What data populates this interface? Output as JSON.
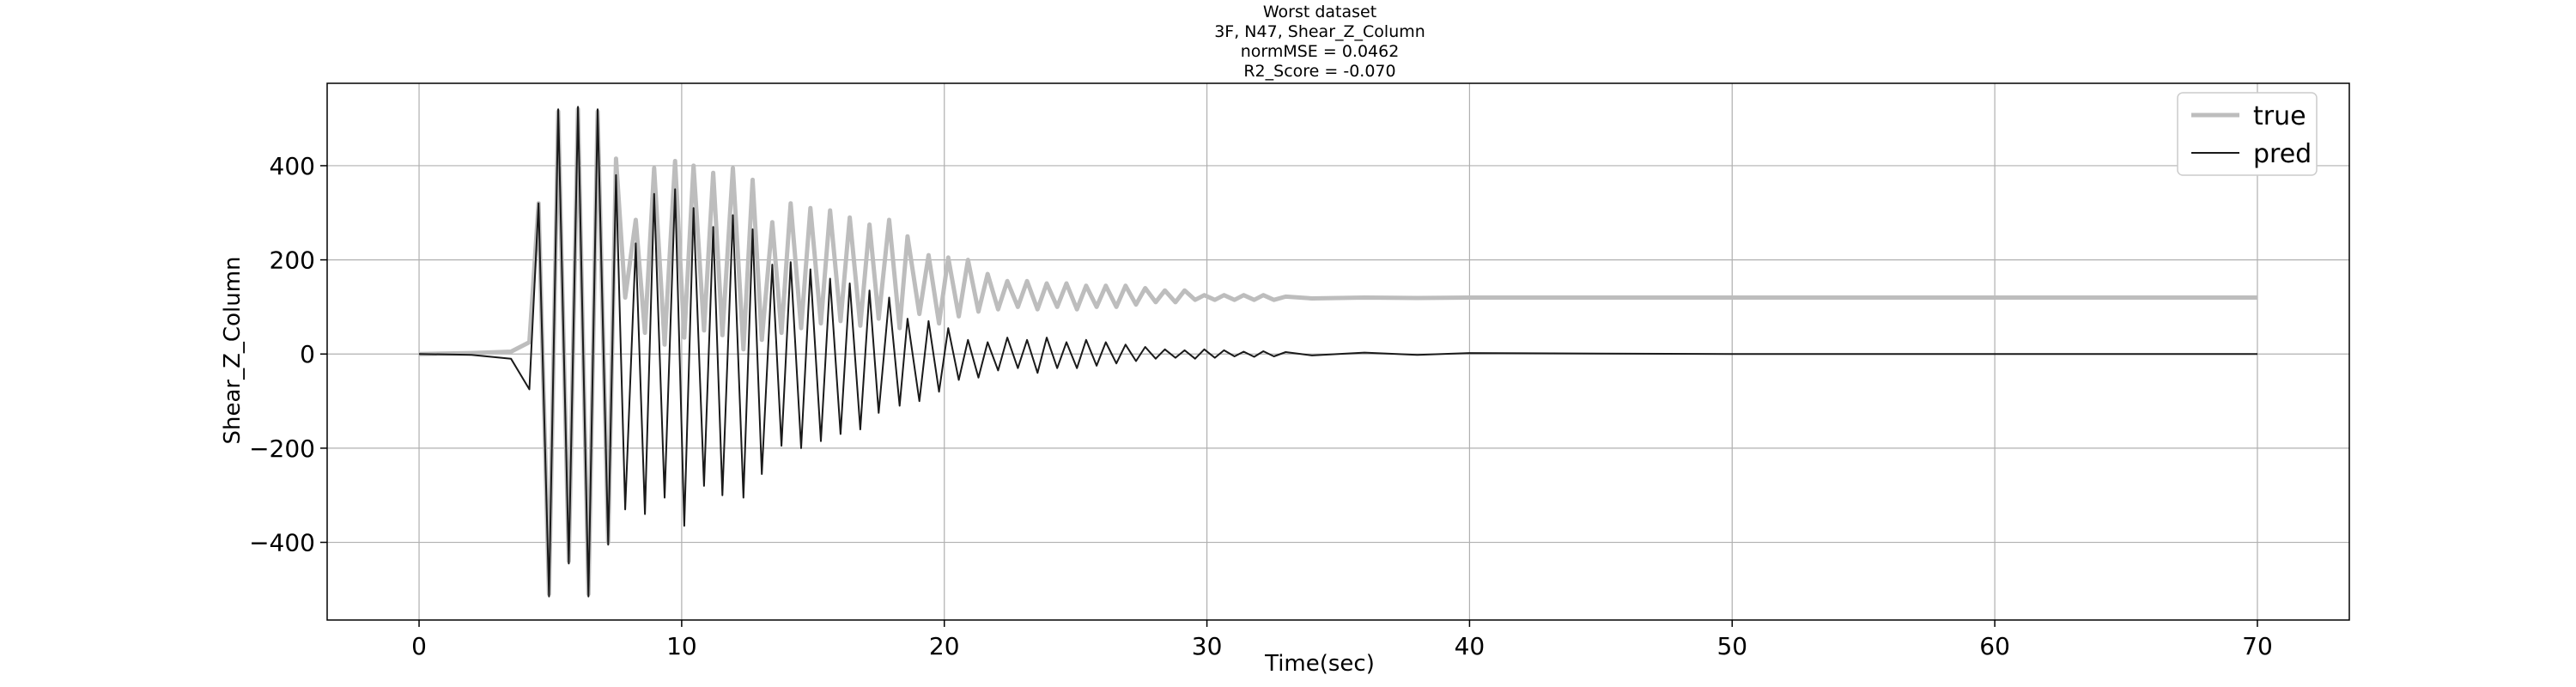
{
  "chart_data": {
    "type": "line",
    "title_lines": [
      "Worst dataset",
      "3F, N47, Shear_Z_Column",
      "normMSE = 0.0462",
      "R2_Score = -0.070"
    ],
    "xlabel": "Time(sec)",
    "ylabel": "Shear_Z_Column",
    "xlim": [
      -3.5,
      73.5
    ],
    "ylim": [
      -565,
      575
    ],
    "x_ticks": [
      0,
      10,
      20,
      30,
      40,
      50,
      60,
      70
    ],
    "x_tick_labels": [
      "0",
      "10",
      "20",
      "30",
      "40",
      "50",
      "60",
      "70"
    ],
    "y_ticks": [
      -400,
      -200,
      0,
      200,
      400
    ],
    "y_tick_labels": [
      "−400",
      "−200",
      "0",
      "200",
      "400"
    ],
    "grid": true,
    "legend": {
      "position": "upper-right",
      "entries": [
        "true",
        "pred"
      ]
    },
    "series": [
      {
        "name": "true",
        "color": "#bdbdbd",
        "x": [
          0,
          2,
          3.5,
          4.2,
          4.55,
          4.95,
          5.3,
          5.7,
          6.05,
          6.45,
          6.8,
          7.2,
          7.5,
          7.85,
          8.25,
          8.6,
          8.95,
          9.35,
          9.75,
          10.1,
          10.45,
          10.85,
          11.2,
          11.55,
          11.95,
          12.35,
          12.7,
          13.05,
          13.45,
          13.8,
          14.15,
          14.55,
          14.9,
          15.3,
          15.65,
          16.05,
          16.4,
          16.8,
          17.15,
          17.5,
          17.9,
          18.3,
          18.6,
          19.05,
          19.4,
          19.8,
          20.15,
          20.55,
          20.9,
          21.3,
          21.65,
          22.05,
          22.4,
          22.8,
          23.15,
          23.55,
          23.9,
          24.3,
          24.65,
          25.05,
          25.4,
          25.8,
          26.15,
          26.55,
          26.9,
          27.3,
          27.65,
          28.05,
          28.4,
          28.8,
          29.15,
          29.55,
          29.9,
          30.3,
          30.65,
          31.05,
          31.4,
          31.8,
          32.15,
          32.55,
          33,
          34,
          36,
          38,
          40,
          45,
          50,
          55,
          60,
          65,
          70
        ],
        "values": [
          0,
          2,
          5,
          25,
          320,
          -510,
          515,
          -440,
          520,
          -510,
          515,
          -400,
          415,
          120,
          285,
          45,
          395,
          20,
          410,
          35,
          400,
          50,
          385,
          40,
          395,
          10,
          370,
          30,
          280,
          45,
          320,
          55,
          310,
          65,
          305,
          70,
          290,
          60,
          275,
          75,
          285,
          55,
          250,
          85,
          210,
          65,
          205,
          80,
          200,
          90,
          170,
          95,
          155,
          100,
          155,
          95,
          150,
          100,
          150,
          95,
          145,
          100,
          145,
          100,
          145,
          105,
          140,
          110,
          135,
          110,
          135,
          115,
          125,
          115,
          125,
          115,
          125,
          115,
          125,
          115,
          122,
          118,
          120,
          119,
          120,
          120,
          120,
          120,
          120,
          120,
          120
        ]
      },
      {
        "name": "pred",
        "color": "#1a1a1a",
        "x": [
          0,
          2,
          3.5,
          4.2,
          4.55,
          4.95,
          5.3,
          5.7,
          6.05,
          6.45,
          6.8,
          7.2,
          7.5,
          7.85,
          8.25,
          8.6,
          8.95,
          9.35,
          9.75,
          10.1,
          10.45,
          10.85,
          11.2,
          11.55,
          11.95,
          12.35,
          12.7,
          13.05,
          13.45,
          13.8,
          14.15,
          14.55,
          14.9,
          15.3,
          15.65,
          16.05,
          16.4,
          16.8,
          17.15,
          17.5,
          17.9,
          18.3,
          18.6,
          19.05,
          19.4,
          19.8,
          20.15,
          20.55,
          20.9,
          21.3,
          21.65,
          22.05,
          22.4,
          22.8,
          23.15,
          23.55,
          23.9,
          24.3,
          24.65,
          25.05,
          25.4,
          25.8,
          26.15,
          26.55,
          26.9,
          27.3,
          27.65,
          28.05,
          28.4,
          28.8,
          29.15,
          29.55,
          29.9,
          30.3,
          30.65,
          31.05,
          31.4,
          31.8,
          32.15,
          32.55,
          33,
          34,
          36,
          38,
          40,
          45,
          50,
          55,
          60,
          65,
          70
        ],
        "values": [
          0,
          -2,
          -10,
          -75,
          320,
          -515,
          520,
          -445,
          525,
          -515,
          520,
          -405,
          380,
          -330,
          235,
          -340,
          340,
          -305,
          350,
          -365,
          310,
          -280,
          270,
          -300,
          295,
          -305,
          265,
          -255,
          190,
          -195,
          195,
          -200,
          180,
          -185,
          160,
          -170,
          150,
          -160,
          135,
          -125,
          120,
          -110,
          75,
          -100,
          70,
          -80,
          55,
          -55,
          30,
          -50,
          25,
          -35,
          35,
          -30,
          30,
          -40,
          35,
          -30,
          25,
          -30,
          30,
          -25,
          25,
          -20,
          20,
          -15,
          15,
          -10,
          10,
          -8,
          8,
          -10,
          10,
          -8,
          8,
          -5,
          5,
          -6,
          6,
          -5,
          4,
          -3,
          3,
          -2,
          2,
          1,
          0,
          0,
          0,
          0,
          0
        ]
      }
    ]
  }
}
